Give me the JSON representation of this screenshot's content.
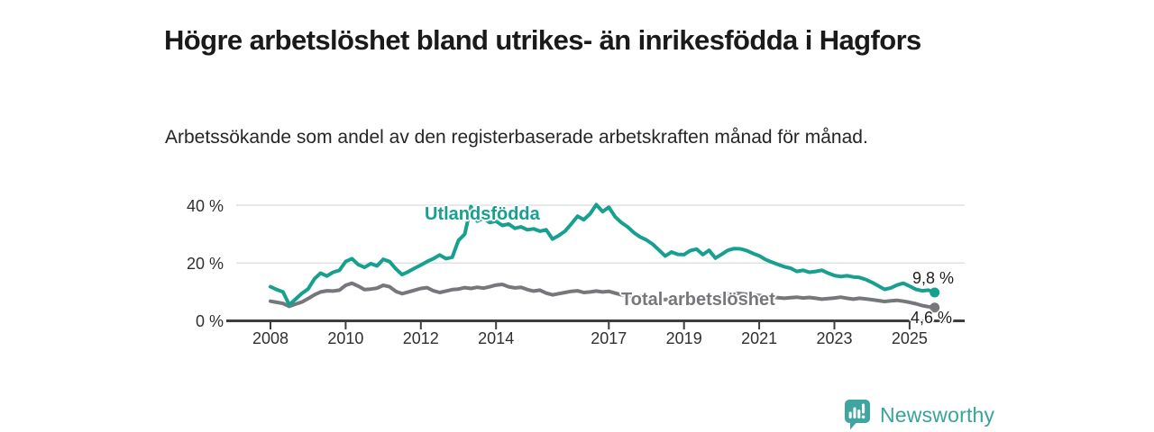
{
  "header": {
    "title": "Högre arbetslöshet bland utrikes- än inrikesfödda i Hagfors",
    "subtitle": "Arbetssökande som andel av den registerbaserade arbetskraften månad för månad."
  },
  "colors": {
    "foreign_line": "#17a08f",
    "total_line": "#76777a",
    "grid": "#e1e1e1",
    "axis": "#3e3e40",
    "tick_text": "#303030",
    "title_text": "#1a1a1a",
    "logo_teal": "#3fa5a0"
  },
  "chart": {
    "y_ticks": [
      {
        "label": "40 %",
        "value": 40
      },
      {
        "label": "20 %",
        "value": 20
      },
      {
        "label": "0 %",
        "value": 0
      }
    ],
    "x_ticks": [
      {
        "label": "2008",
        "year": 2008
      },
      {
        "label": "2010",
        "year": 2010
      },
      {
        "label": "2012",
        "year": 2012
      },
      {
        "label": "2014",
        "year": 2014
      },
      {
        "label": "2017",
        "year": 2017
      },
      {
        "label": "2019",
        "year": 2019
      },
      {
        "label": "2021",
        "year": 2021
      },
      {
        "label": "2023",
        "year": 2023
      },
      {
        "label": "2025",
        "year": 2025
      }
    ],
    "series_label_foreign": "Utlandsfödda",
    "series_label_total": "Total arbetslöshet",
    "end_label_foreign": "9,8 %",
    "end_label_total": "4,6 %"
  },
  "footer": {
    "logo_icon": "newsworthy-bar-chart-speech-bubble-icon",
    "logo_text": "Newsworthy"
  },
  "chart_data": {
    "type": "line",
    "title": "Högre arbetslöshet bland utrikes- än inrikesfödda i Hagfors",
    "subtitle": "Arbetssökande som andel av den registerbaserade arbetskraften månad för månad.",
    "x_unit": "decimal_year",
    "start_year": 2008.0,
    "step_years": 0.166667,
    "xlim": [
      2008.0,
      2025.67
    ],
    "ylim": [
      0,
      45
    ],
    "y_tick_values": [
      0,
      20,
      40
    ],
    "x_tick_years": [
      2008,
      2010,
      2012,
      2014,
      2017,
      2019,
      2021,
      2023,
      2025
    ],
    "grid": "horizontal-only",
    "legend": "inline-labels",
    "series": [
      {
        "name": "Utlandsfödda",
        "color": "#17a08f",
        "end_value": 9.8,
        "end_value_label": "9,8 %",
        "values": [
          11.8,
          10.8,
          10.0,
          5.5,
          7.5,
          9.5,
          11.0,
          14.5,
          16.5,
          15.5,
          16.8,
          17.5,
          20.5,
          21.5,
          19.5,
          18.5,
          19.8,
          19.0,
          21.3,
          20.5,
          18.0,
          16.0,
          17.0,
          18.2,
          19.3,
          20.5,
          21.5,
          22.8,
          21.5,
          22.0,
          27.8,
          30.0,
          39.5,
          34.5,
          35.5,
          34.0,
          34.5,
          33.0,
          33.5,
          32.0,
          32.5,
          31.5,
          31.8,
          31.0,
          31.5,
          28.3,
          29.5,
          31.0,
          33.5,
          36.2,
          35.0,
          37.0,
          40.2,
          37.8,
          39.3,
          36.0,
          34.0,
          32.5,
          30.5,
          29.0,
          28.0,
          26.5,
          24.5,
          22.4,
          23.8,
          23.0,
          22.9,
          24.3,
          24.8,
          22.9,
          24.4,
          21.7,
          23.0,
          24.4,
          25.0,
          24.9,
          24.3,
          23.3,
          22.5,
          21.2,
          20.3,
          19.5,
          18.7,
          18.2,
          17.1,
          17.5,
          16.8,
          17.1,
          17.5,
          16.5,
          15.7,
          15.3,
          15.6,
          15.2,
          15.0,
          14.3,
          13.3,
          12.1,
          10.9,
          11.4,
          12.4,
          13.0,
          12.0,
          10.9,
          10.4,
          10.6,
          9.8
        ]
      },
      {
        "name": "Total arbetslöshet",
        "color": "#76777a",
        "end_value": 4.6,
        "end_value_label": "4,6 %",
        "values": [
          6.8,
          6.4,
          6.0,
          5.0,
          5.8,
          6.5,
          7.7,
          9.0,
          10.0,
          10.4,
          10.3,
          10.6,
          12.3,
          13.0,
          12.0,
          10.8,
          11.0,
          11.3,
          12.3,
          11.8,
          10.2,
          9.4,
          10.0,
          10.6,
          11.2,
          11.5,
          10.4,
          9.8,
          10.3,
          10.8,
          11.0,
          11.5,
          11.2,
          11.6,
          11.3,
          11.8,
          12.4,
          12.6,
          11.8,
          11.4,
          11.6,
          10.8,
          10.3,
          10.6,
          9.6,
          9.0,
          9.4,
          9.8,
          10.2,
          10.4,
          9.8,
          10.0,
          10.3,
          10.0,
          10.2,
          9.6,
          9.0,
          8.6,
          8.2,
          8.5,
          8.0,
          7.4,
          7.6,
          7.3,
          7.8,
          8.2,
          8.4,
          8.3,
          8.0,
          8.2,
          7.9,
          8.1,
          8.6,
          9.3,
          9.6,
          9.4,
          9.2,
          9.0,
          8.8,
          8.5,
          8.2,
          8.0,
          7.8,
          8.0,
          8.2,
          7.9,
          8.1,
          7.8,
          7.5,
          7.7,
          7.9,
          8.2,
          7.8,
          7.5,
          7.8,
          7.6,
          7.3,
          7.0,
          6.7,
          6.9,
          7.1,
          6.8,
          6.4,
          5.9,
          5.3,
          4.9,
          4.6
        ]
      }
    ]
  }
}
